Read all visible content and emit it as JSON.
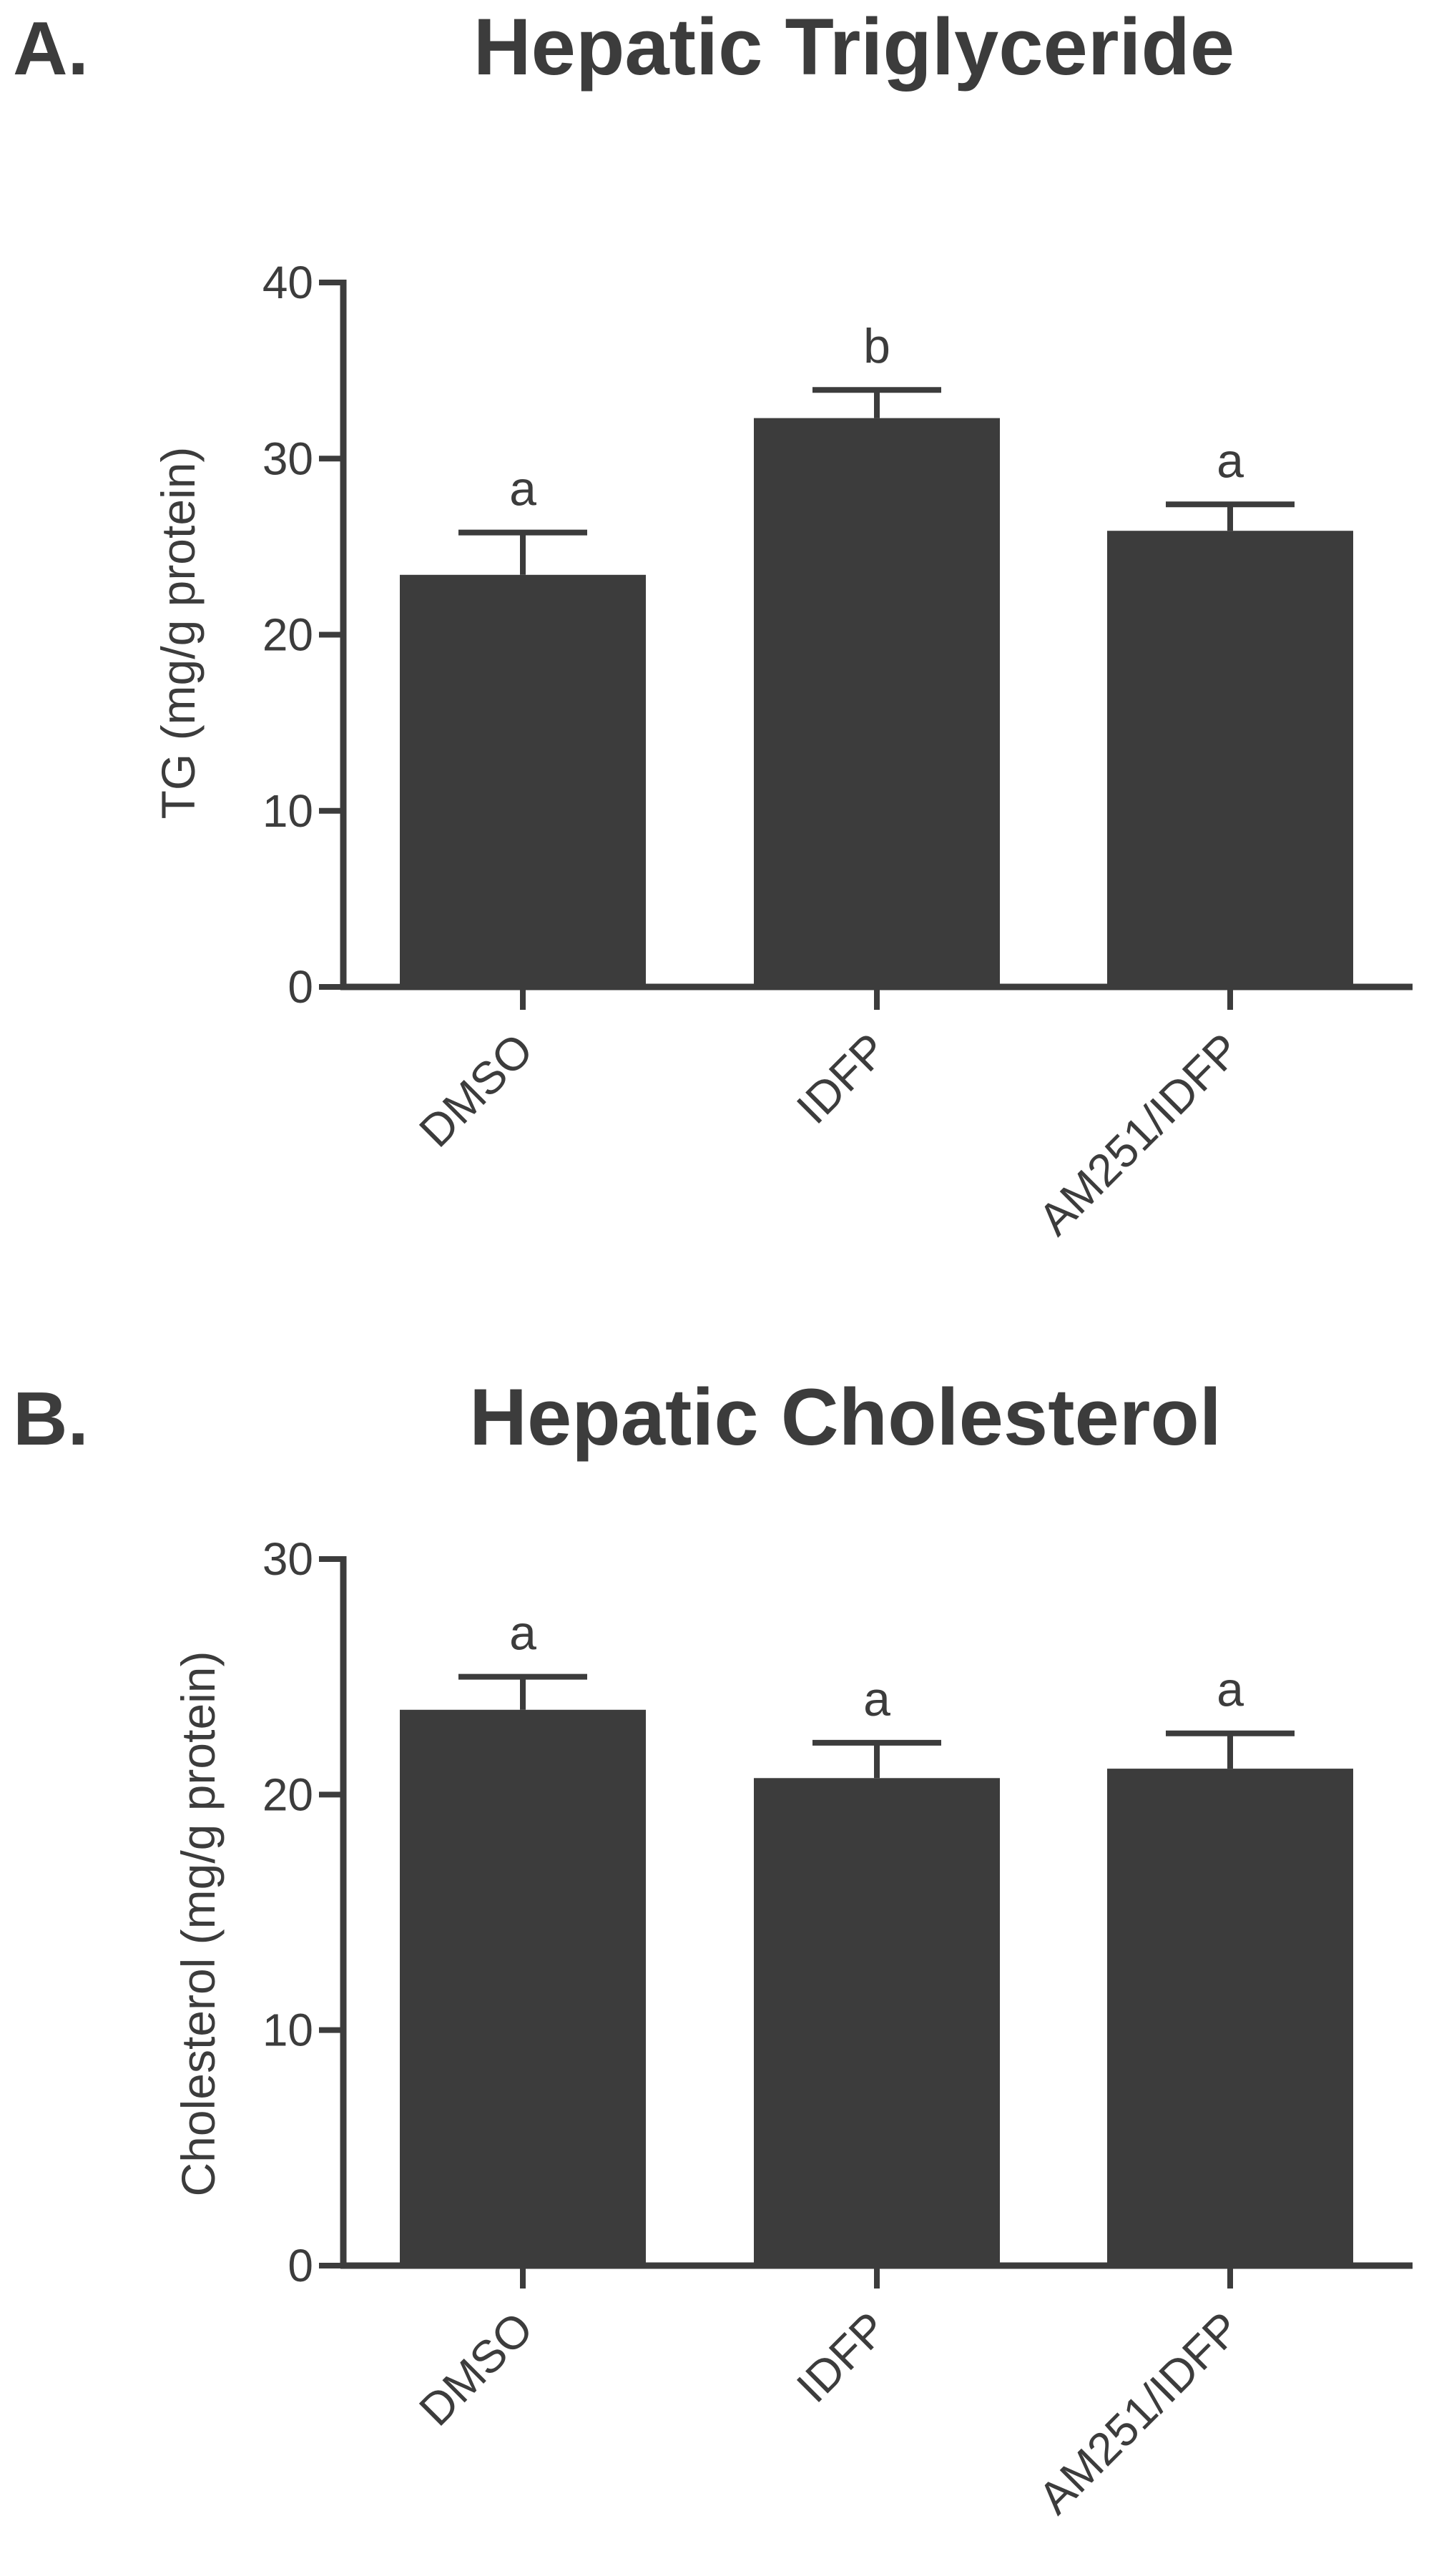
{
  "colors": {
    "ink": "#3c3c3c",
    "bar": "#3c3c3c",
    "background": "#ffffff"
  },
  "chart_data": [
    {
      "type": "bar",
      "panel_label": "A.",
      "title": "Hepatic Triglyceride",
      "xlabel": "",
      "ylabel": "TG (mg/g protein)",
      "categories": [
        "DMSO",
        "IDFP",
        "AM251/IDFP"
      ],
      "values": [
        23.4,
        32.3,
        25.9
      ],
      "error_upper": [
        25.8,
        33.9,
        27.4
      ],
      "significance": [
        "a",
        "b",
        "a"
      ],
      "ylim": [
        0,
        40
      ],
      "yticks": [
        0,
        10,
        20,
        30,
        40
      ],
      "ytick_labels": [
        "0",
        "10",
        "20",
        "30",
        "40"
      ],
      "grid": false,
      "legend": "none"
    },
    {
      "type": "bar",
      "panel_label": "B.",
      "title": "Hepatic Cholesterol",
      "xlabel": "",
      "ylabel": "Cholesterol (mg/g protein)",
      "categories": [
        "DMSO",
        "IDFP",
        "AM251/IDFP"
      ],
      "values": [
        23.6,
        20.7,
        21.1
      ],
      "error_upper": [
        25.0,
        22.2,
        22.6
      ],
      "significance": [
        "a",
        "a",
        "a"
      ],
      "ylim": [
        0,
        30
      ],
      "yticks": [
        0,
        10,
        20,
        30
      ],
      "ytick_labels": [
        "0",
        "10",
        "20",
        "30"
      ],
      "grid": false,
      "legend": "none"
    }
  ]
}
